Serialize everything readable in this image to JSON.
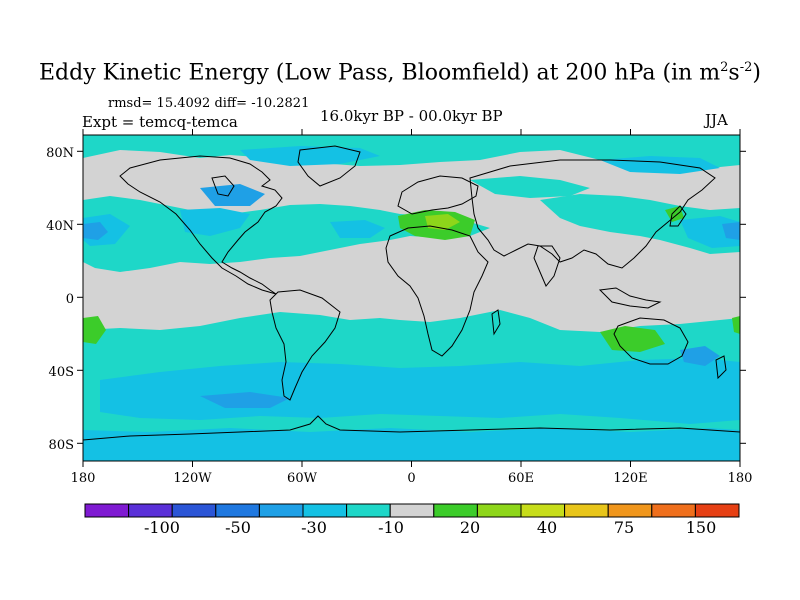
{
  "title": {
    "main": "Eddy Kinetic Energy (Low Pass, Bloomfield) at 200 hPa (in m",
    "sup1": "2",
    "mid": "s",
    "sup2": "-2",
    "end": ")"
  },
  "stats": "rmsd= 15.4092 diff= -10.2821",
  "expt": "Expt = temcq-temca",
  "period": "16.0kyr BP - 00.0kyr BP",
  "season": "JJA",
  "map": {
    "y_ticks": [
      "80N",
      "40N",
      "0",
      "40S",
      "80S"
    ],
    "x_ticks": [
      "180",
      "120W",
      "60W",
      "0",
      "60E",
      "120E",
      "180"
    ],
    "ocean_fill": "#d3d3d3",
    "coast_color": "#000000"
  },
  "colorbar": {
    "colors": [
      "#7f1ad2",
      "#5a30d8",
      "#2b55d6",
      "#1f78e0",
      "#1fa0e6",
      "#14c1e4",
      "#1ed7c8",
      "#d3d3d3",
      "#3ccc2a",
      "#8ed61a",
      "#c7dd1a",
      "#e8c51a",
      "#f0961c",
      "#ef6f1c",
      "#e64014"
    ],
    "labels": [
      "-100",
      "-50",
      "-30",
      "-10",
      "20",
      "40",
      "75",
      "150"
    ]
  }
}
